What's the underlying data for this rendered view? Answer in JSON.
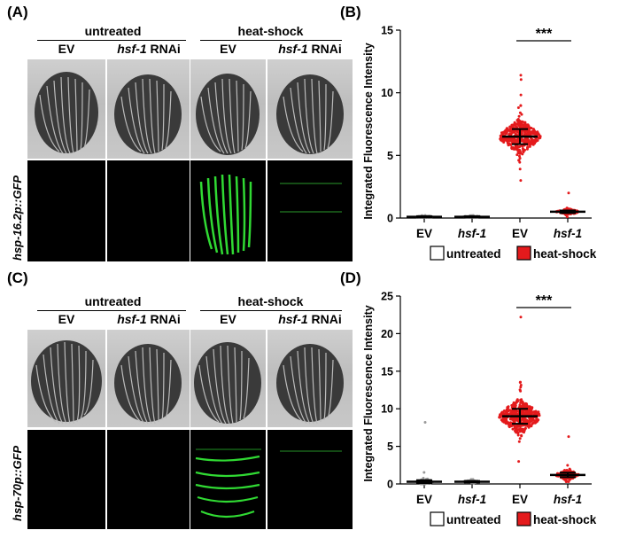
{
  "figure": {
    "panels": {
      "A": "(A)",
      "B": "(B)",
      "C": "(C)",
      "D": "(D)"
    },
    "groups": {
      "untreated": "untreated",
      "heat_shock": "heat-shock"
    },
    "columns": {
      "ev": "EV",
      "hsf1_gene": "hsf-1",
      "hsf1_suffix": " RNAi"
    },
    "row_labels": {
      "A": "hsp-16.2p::GFP",
      "C": "hsp-70p::GFP"
    },
    "legend": {
      "untreated": "untreated",
      "heat_shock": "heat-shock"
    },
    "colors": {
      "red": "#e41a1c",
      "gfp": "#39ff3c"
    }
  },
  "chart_data": [
    {
      "id": "B",
      "type": "scatter",
      "title": "",
      "xlabel": "",
      "ylabel": "Integrated Fluorescence Intensity",
      "categories": [
        "EV",
        "hsf-1",
        "EV",
        "hsf-1"
      ],
      "ylim": [
        0,
        15
      ],
      "yticks": [
        0,
        5,
        10,
        15
      ],
      "significance": "***",
      "significance_pair": [
        2,
        3
      ],
      "series": [
        {
          "name": "EV untreated",
          "group": "untreated",
          "mean": 0.1,
          "sd": 0.05,
          "min": 0.05,
          "max": 0.2
        },
        {
          "name": "hsf-1 untreated",
          "group": "untreated",
          "mean": 0.1,
          "sd": 0.05,
          "min": 0.05,
          "max": 0.2
        },
        {
          "name": "EV heat-shock",
          "group": "heat-shock",
          "mean": 6.5,
          "sd": 0.6,
          "min": 3.0,
          "max": 11.4
        },
        {
          "name": "hsf-1 heat-shock",
          "group": "heat-shock",
          "mean": 0.5,
          "sd": 0.1,
          "min": 0.1,
          "max": 2.0
        }
      ]
    },
    {
      "id": "D",
      "type": "scatter",
      "title": "",
      "xlabel": "",
      "ylabel": "Integrated Fluorescence Intensity",
      "categories": [
        "EV",
        "hsf-1",
        "EV",
        "hsf-1"
      ],
      "ylim": [
        0,
        25
      ],
      "yticks": [
        0,
        5,
        10,
        15,
        20,
        25
      ],
      "significance": "***",
      "significance_pair": [
        2,
        3
      ],
      "series": [
        {
          "name": "EV untreated",
          "group": "untreated",
          "mean": 0.3,
          "sd": 0.2,
          "min": 0.0,
          "max": 8.2
        },
        {
          "name": "hsf-1 untreated",
          "group": "untreated",
          "mean": 0.3,
          "sd": 0.1,
          "min": 0.1,
          "max": 0.6
        },
        {
          "name": "EV heat-shock",
          "group": "heat-shock",
          "mean": 9.0,
          "sd": 1.0,
          "min": 3.0,
          "max": 22.2
        },
        {
          "name": "hsf-1 heat-shock",
          "group": "heat-shock",
          "mean": 1.2,
          "sd": 0.3,
          "min": 0.3,
          "max": 6.3
        }
      ]
    }
  ]
}
